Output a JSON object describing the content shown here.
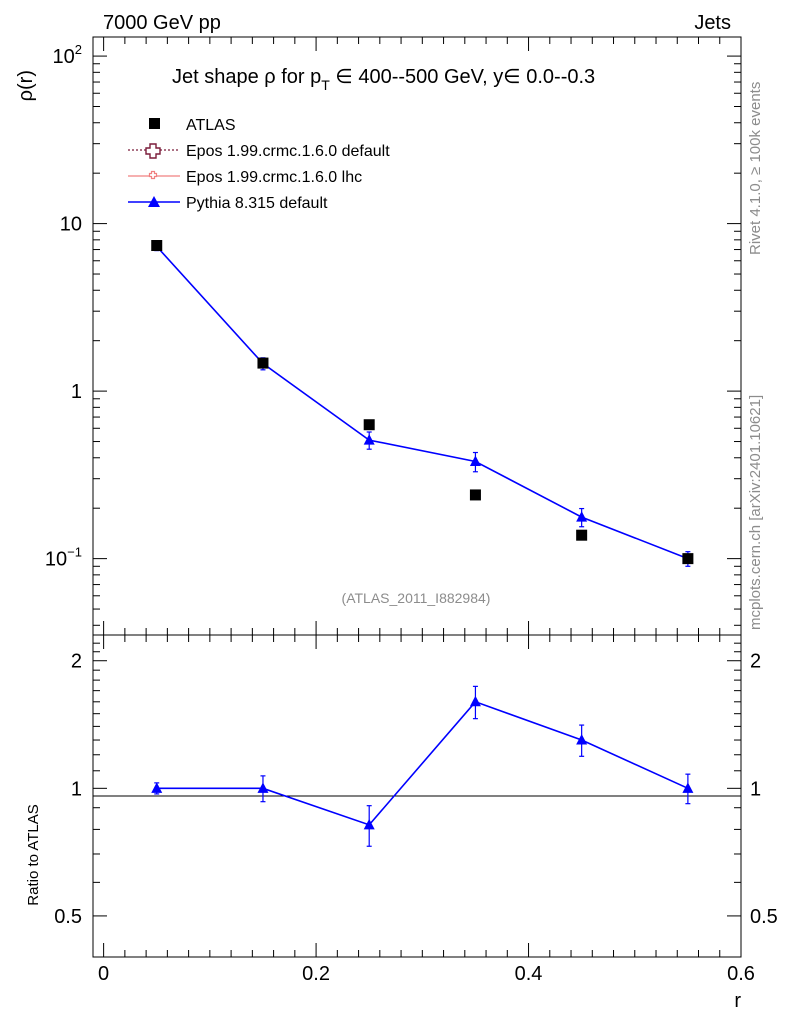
{
  "header": {
    "left": "7000 GeV pp",
    "right": "Jets"
  },
  "side": {
    "rivet": "Rivet 4.1.0, ≥ 100k events",
    "mcplots": "mcplots.cern.ch [arXiv:2401.10621]"
  },
  "chart_data": {
    "type": "line",
    "title": "Jet shape ρ for p_T ∈ 400--500 GeV, y∈ 0.0--0.3",
    "title_parts": {
      "main": "Jet shape ρ for p",
      "sub": "T",
      "rest": " ∈ 400--500 GeV, y∈ 0.0--0.3"
    },
    "analysis_label": "(ATLAS_2011_I882984)",
    "xlabel": "r",
    "ylabel": "ρ(r)",
    "ratio_ylabel": "Ratio to ATLAS",
    "xlim": [
      -0.01,
      0.6
    ],
    "ylim": [
      0.035,
      130
    ],
    "yscale": "log",
    "ratio_ylim": [
      0.4,
      2.3
    ],
    "x": [
      0.05,
      0.15,
      0.25,
      0.35,
      0.45,
      0.55
    ],
    "x_ticks": [
      "0",
      "0.2",
      "0.4",
      "0.6"
    ],
    "y_ticks": [
      "10^-1",
      "1",
      "10",
      "10^2"
    ],
    "ratio_ticks": [
      "0.5",
      "1",
      "2"
    ],
    "legend": [
      "ATLAS",
      "Epos 1.99.crmc.1.6.0 default",
      "Epos 1.99.crmc.1.6.0 lhc",
      "Pythia 8.315 default"
    ],
    "series": [
      {
        "name": "ATLAS",
        "values": [
          7.4,
          1.47,
          0.63,
          0.24,
          0.138,
          0.1
        ],
        "color": "#000000"
      },
      {
        "name": "Pythia 8.315 default",
        "values": [
          7.3,
          1.46,
          0.51,
          0.38,
          0.177,
          0.1
        ],
        "err": [
          0.4,
          0.12,
          0.06,
          0.05,
          0.022,
          0.01
        ],
        "ratio": [
          1.0,
          1.0,
          0.82,
          1.6,
          1.3,
          1.0
        ],
        "ratio_err": [
          0.03,
          0.07,
          0.09,
          0.14,
          0.11,
          0.08
        ],
        "color": "#0000ff"
      }
    ]
  }
}
